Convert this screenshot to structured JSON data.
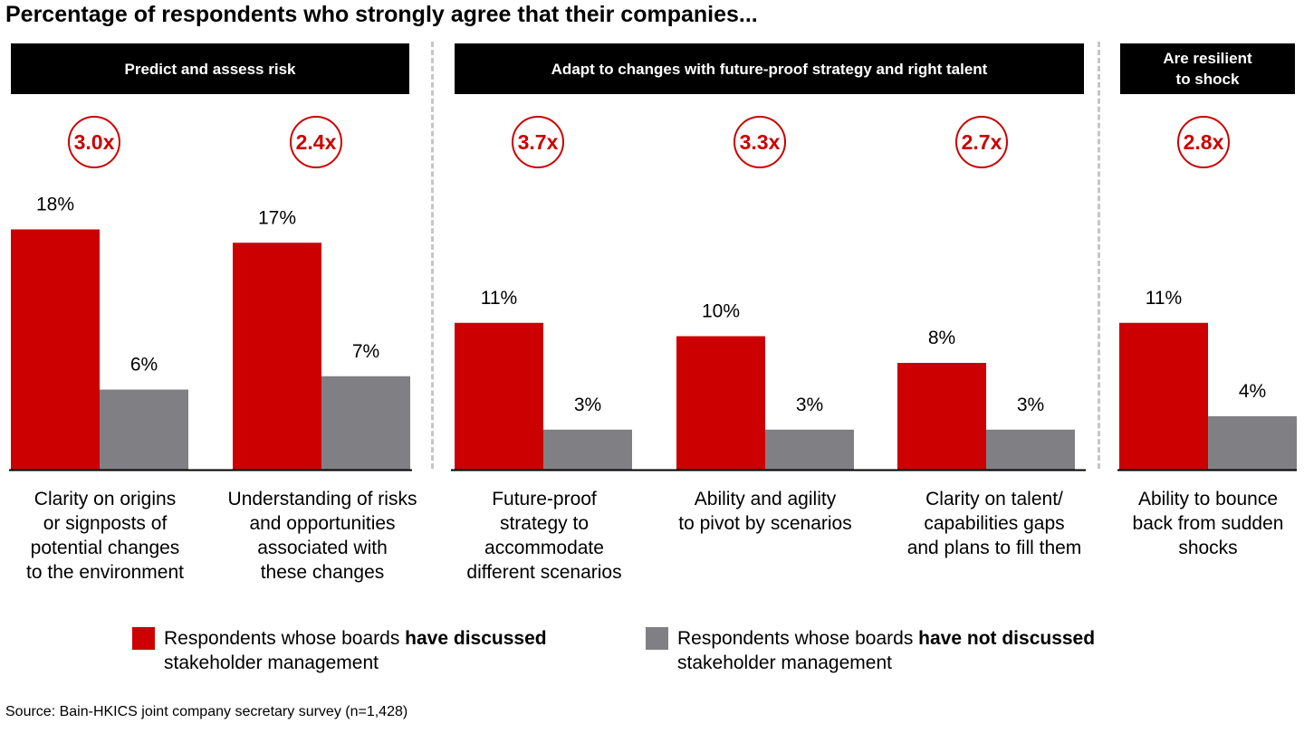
{
  "title": "Percentage of respondents who strongly agree that their companies...",
  "source": "Source: Bain-HKICS joint company secretary survey (n=1,428)",
  "colors": {
    "discussed": "#cc0000",
    "not_discussed": "#808084",
    "accent": "#cc0000"
  },
  "groups": [
    {
      "line1": "Predict and assess risk",
      "line2": ""
    },
    {
      "line1": "Adapt to changes with future-proof strategy and right talent",
      "line2": ""
    },
    {
      "line1": "Are resilient",
      "line2": "to shock"
    }
  ],
  "ratios": [
    "3.0x",
    "2.4x",
    "3.7x",
    "3.3x",
    "2.7x",
    "2.8x"
  ],
  "legend": {
    "discussed": {
      "prefix": "Respondents whose boards ",
      "bold": "have discussed",
      "line2": "stakeholder management"
    },
    "not_discussed": {
      "prefix": "Respondents whose boards ",
      "bold": "have not discussed",
      "line2": "stakeholder management"
    }
  },
  "chart_data": {
    "type": "bar",
    "categories": [
      "Clarity on origins\nor signposts of\npotential changes\nto the environment",
      "Understanding of risks\nand opportunities\nassociated with\nthese changes",
      "Future-proof\nstrategy to\naccommodate\ndifferent scenarios",
      "Ability and agility\nto pivot by scenarios",
      "Clarity on talent/\ncapabilities gaps\nand plans to fill them",
      "Ability to bounce\nback from sudden\nshocks"
    ],
    "series": [
      {
        "name": "Respondents whose boards have discussed stakeholder management",
        "values": [
          18,
          17,
          11,
          10,
          8,
          11
        ],
        "labels": [
          "18%",
          "17%",
          "11%",
          "10%",
          "8%",
          "11%"
        ]
      },
      {
        "name": "Respondents whose boards have not discussed stakeholder management",
        "values": [
          6,
          7,
          3,
          3,
          3,
          4
        ],
        "labels": [
          "6%",
          "7%",
          "3%",
          "3%",
          "3%",
          "4%"
        ]
      }
    ],
    "ylim": [
      0,
      18
    ],
    "unit": "%",
    "grid": false,
    "legend_position": "bottom"
  }
}
